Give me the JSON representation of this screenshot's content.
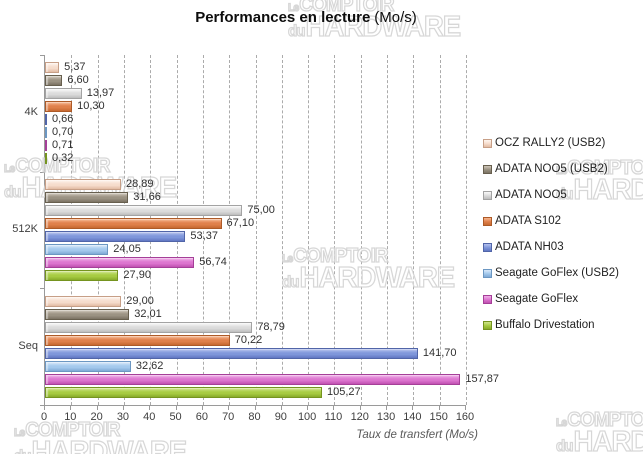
{
  "title": {
    "bold": "Performances en lecture",
    "regular": "(Mo/s)"
  },
  "watermark": {
    "line1_small": "Le",
    "line1_big": "COMPTOIR",
    "line2_small": "du",
    "line2_big": "HARDWARE"
  },
  "chart_data": {
    "type": "bar",
    "orientation": "horizontal",
    "title": "Performances en lecture (Mo/s)",
    "xlabel": "Taux de transfert (Mo/s)",
    "xlim": [
      0,
      160
    ],
    "xticks": [
      0,
      10,
      20,
      30,
      40,
      50,
      60,
      70,
      80,
      90,
      100,
      110,
      120,
      130,
      140,
      150,
      160
    ],
    "grid": "vertical-dashed",
    "legend_position": "right",
    "categories": [
      "4K",
      "512K",
      "Seq"
    ],
    "series": [
      {
        "name": "OCZ RALLY2 (USB2)",
        "values": [
          5.37,
          28.89,
          29.0
        ],
        "labels": [
          "5,37",
          "28,89",
          "29,00"
        ],
        "color": {
          "base": "#f6ddcd",
          "light": "#fdf1e9",
          "dark": "#e2bba3",
          "border": "#c79f87"
        }
      },
      {
        "name": "ADATA NOO5 (USB2)",
        "values": [
          6.6,
          31.66,
          32.01
        ],
        "labels": [
          "6,60",
          "31,66",
          "32,01"
        ],
        "color": {
          "base": "#9c9384",
          "light": "#c7bfb1",
          "dark": "#7b7363",
          "border": "#675f4e"
        }
      },
      {
        "name": "ADATA NOO5",
        "values": [
          13.97,
          75.0,
          78.79
        ],
        "labels": [
          "13,97",
          "75,00",
          "78,79"
        ],
        "color": {
          "base": "#dcdcdc",
          "light": "#f5f5f5",
          "dark": "#bdbdbd",
          "border": "#a3a3a3"
        }
      },
      {
        "name": "ADATA S102",
        "values": [
          10.3,
          67.1,
          70.22
        ],
        "labels": [
          "10,30",
          "67,10",
          "70,22"
        ],
        "color": {
          "base": "#e0814c",
          "light": "#f3af86",
          "dark": "#c66930",
          "border": "#ad5a27"
        }
      },
      {
        "name": "ADATA NH03",
        "values": [
          0.66,
          53.37,
          141.7
        ],
        "labels": [
          "0,66",
          "53,37",
          "141,70"
        ],
        "color": {
          "base": "#8097db",
          "light": "#acbbeb",
          "dark": "#6177c2",
          "border": "#5165a8"
        }
      },
      {
        "name": "Seagate GoFlex (USB2)",
        "values": [
          0.7,
          24.05,
          32.62
        ],
        "labels": [
          "0,70",
          "24,05",
          "32,62"
        ],
        "color": {
          "base": "#a5caed",
          "light": "#d0e4f8",
          "dark": "#7fa9d5",
          "border": "#6c97c2"
        }
      },
      {
        "name": "Seagate GoFlex",
        "values": [
          0.71,
          56.74,
          157.87
        ],
        "labels": [
          "0,71",
          "56,74",
          "157,87"
        ],
        "color": {
          "base": "#dd76d0",
          "light": "#eda7e4",
          "dark": "#c050b1",
          "border": "#a53f98"
        }
      },
      {
        "name": "Buffalo Drivestation",
        "values": [
          0.32,
          27.9,
          105.27
        ],
        "labels": [
          "0,32",
          "27,90",
          "105,27"
        ],
        "color": {
          "base": "#a8cc43",
          "light": "#c9e181",
          "dark": "#88ab29",
          "border": "#75941f"
        }
      }
    ]
  }
}
